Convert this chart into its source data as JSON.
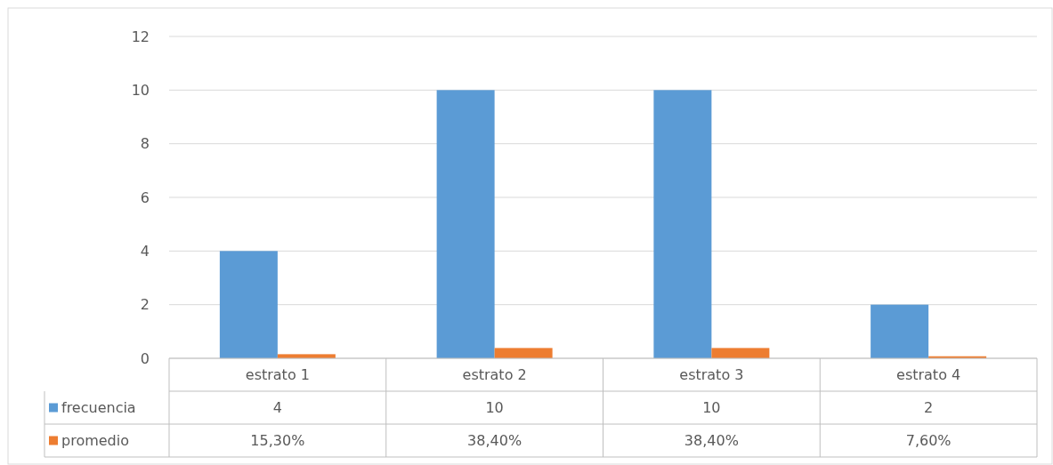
{
  "chart_data": {
    "type": "bar",
    "categories": [
      "estrato 1",
      "estrato 2",
      "estrato 3",
      "estrato 4"
    ],
    "series": [
      {
        "name": "frecuencia",
        "color": "#5b9bd5",
        "values": [
          4,
          10,
          10,
          2
        ],
        "value_labels": [
          "4",
          "10",
          "10",
          "2"
        ]
      },
      {
        "name": "promedio",
        "color": "#ed7d31",
        "values": [
          0.153,
          0.384,
          0.384,
          0.076
        ],
        "value_labels": [
          "15,30%",
          "38,40%",
          "38,40%",
          "7,60%"
        ]
      }
    ],
    "ylim": [
      0,
      12
    ],
    "yticks": [
      0,
      2,
      4,
      6,
      8,
      10,
      12
    ],
    "grid": "y",
    "legend": "bottom"
  }
}
